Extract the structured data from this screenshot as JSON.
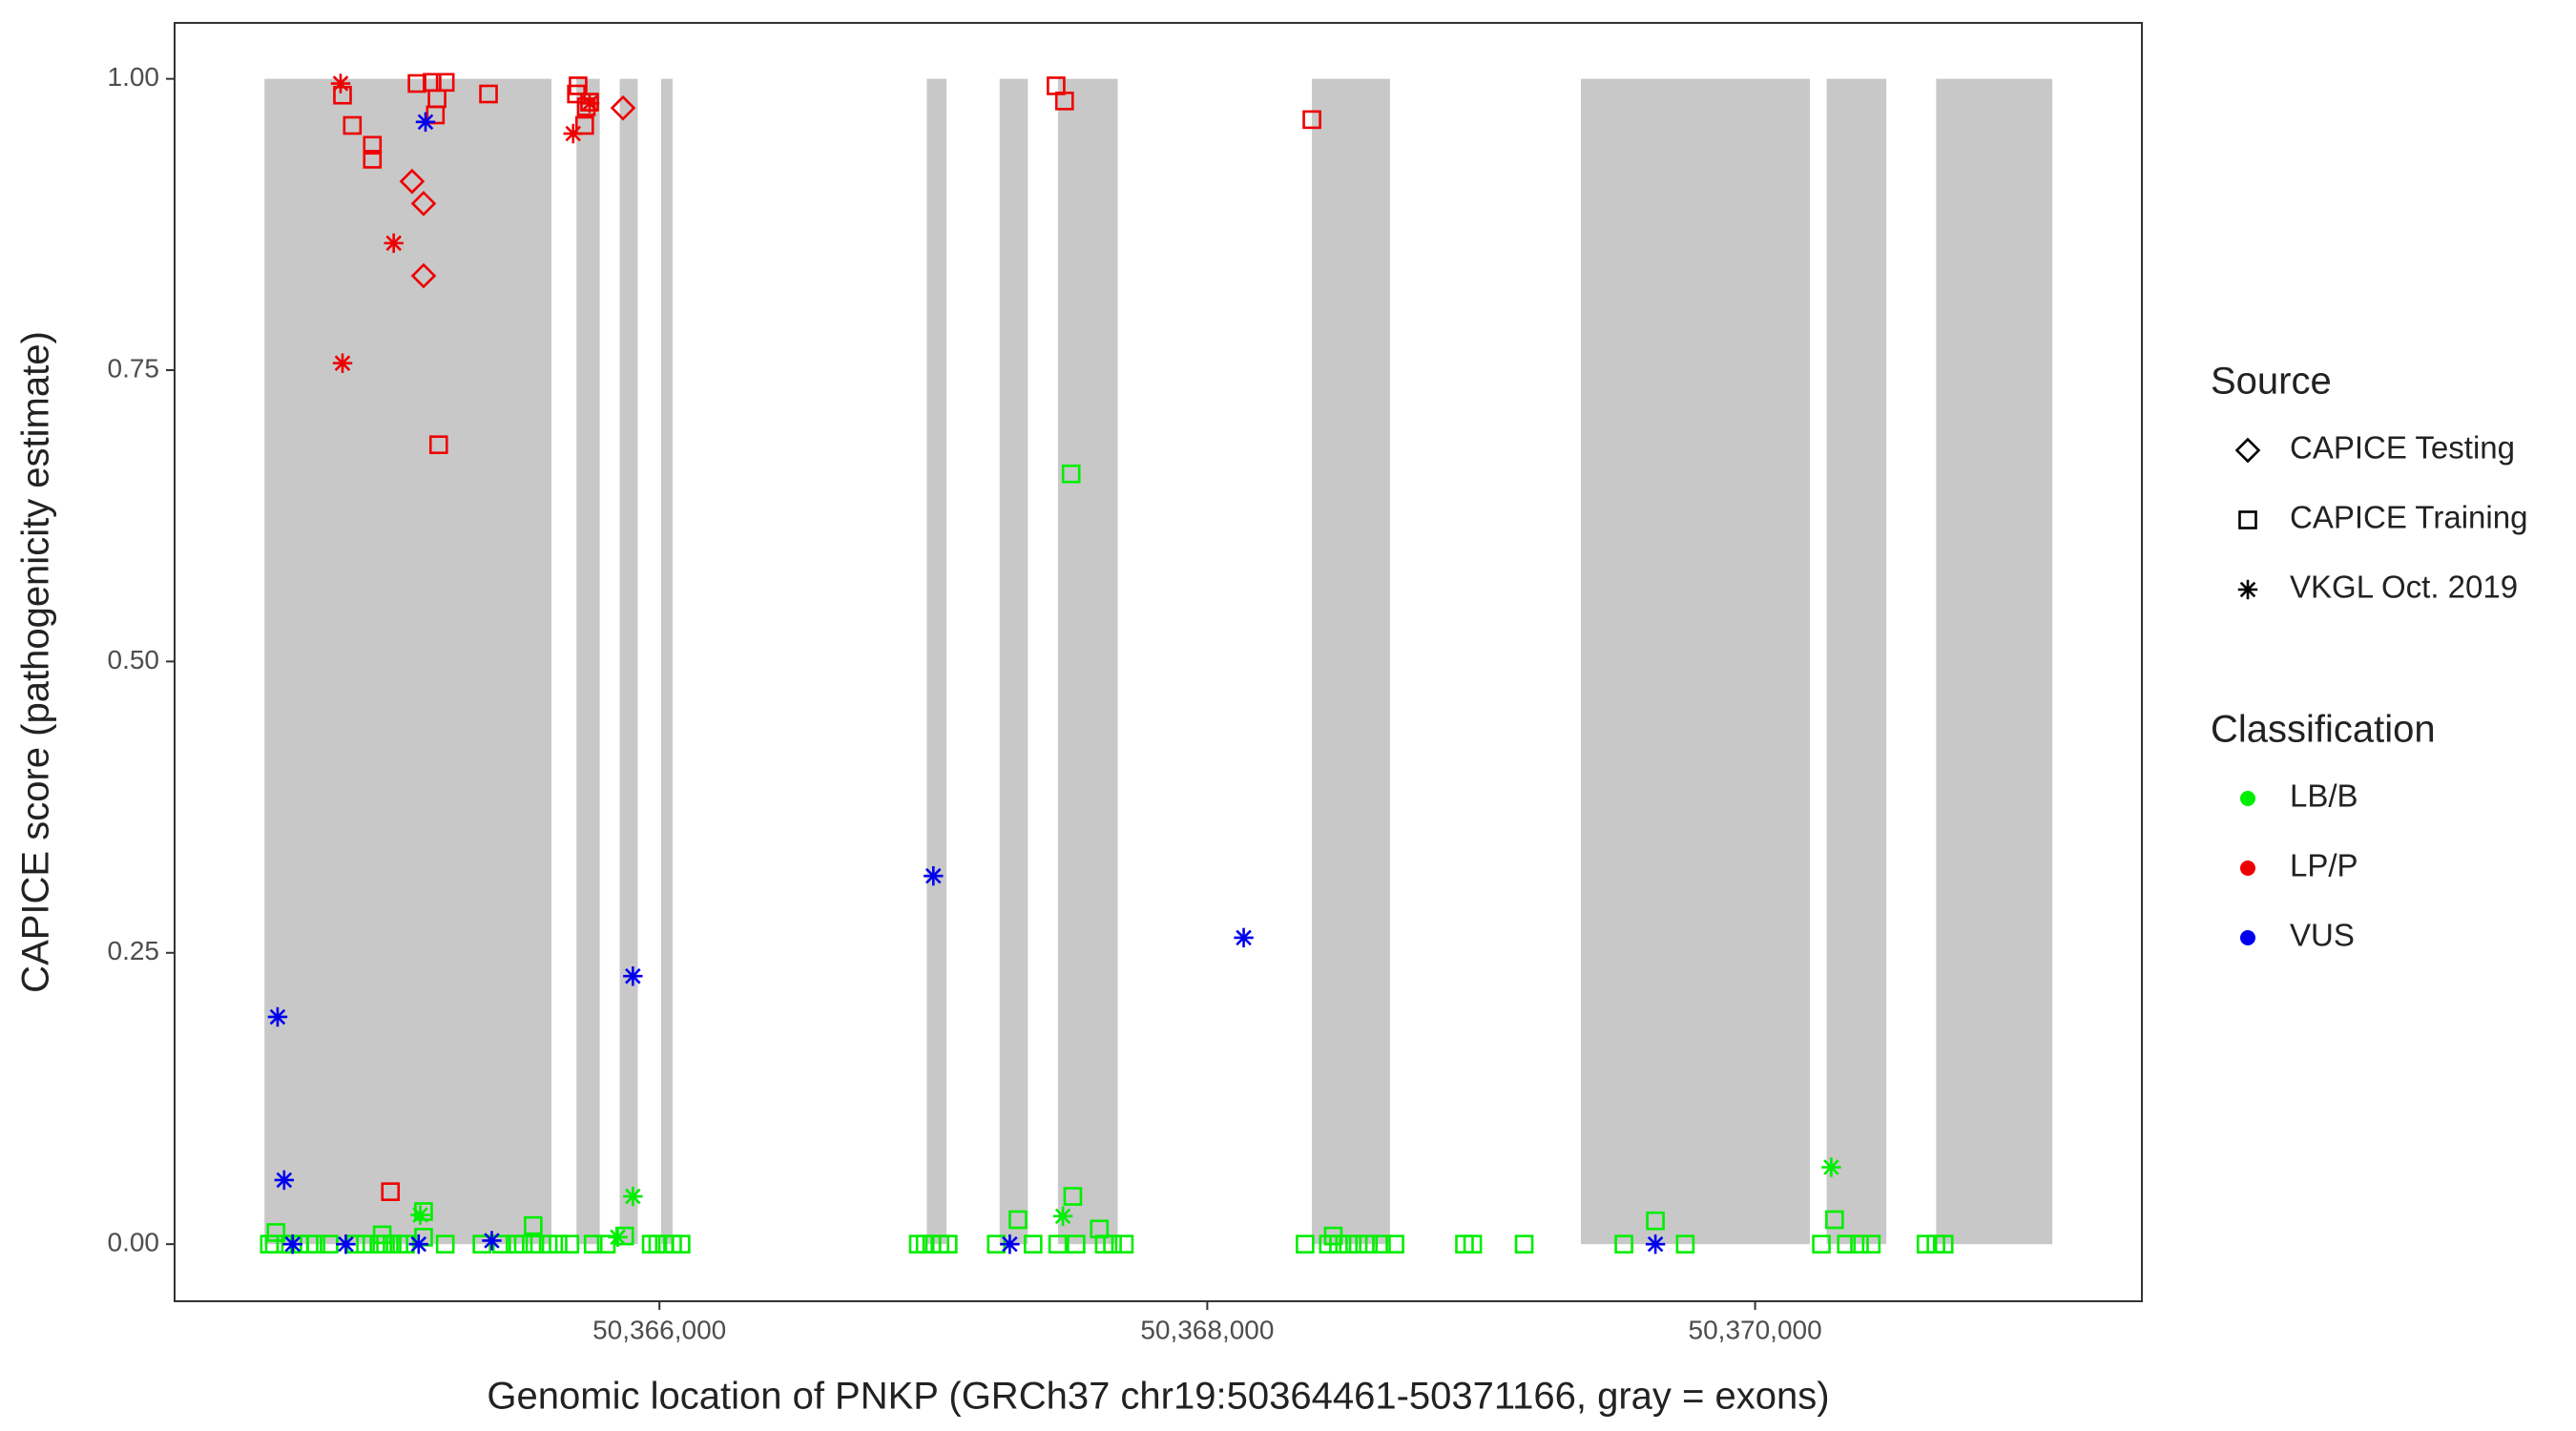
{
  "chart_data": {
    "type": "scatter",
    "x_label": "Genomic location of PNKP (GRCh37 chr19:50364461-50371166, gray = exons)",
    "y_label": "CAPICE score (pathogenicity estimate)",
    "xlim": [
      50364230,
      50371412
    ],
    "ylim": [
      -0.049,
      1.048
    ],
    "xticks": [
      {
        "value": 50366000,
        "label": "50,366,000"
      },
      {
        "value": 50368000,
        "label": "50,368,000"
      },
      {
        "value": 50370000,
        "label": "50,370,000"
      }
    ],
    "yticks": [
      {
        "value": 0,
        "label": "0.00"
      },
      {
        "value": 0.25,
        "label": "0.25"
      },
      {
        "value": 0.5,
        "label": "0.50"
      },
      {
        "value": 0.75,
        "label": "0.75"
      },
      {
        "value": 1,
        "label": "1.00"
      }
    ],
    "grid": false,
    "exon_color": "#c8c8c8",
    "exons": [
      [
        50364558,
        50365606
      ],
      [
        50365697,
        50365782
      ],
      [
        50365855,
        50365921
      ],
      [
        50366006,
        50366048
      ],
      [
        50366976,
        50367048
      ],
      [
        50367242,
        50367345
      ],
      [
        50367455,
        50367673
      ],
      [
        50368382,
        50368667
      ],
      [
        50369364,
        50370200
      ],
      [
        50370261,
        50370479
      ],
      [
        50370661,
        50371085
      ]
    ],
    "shape_legend": {
      "title": "Source",
      "entries": [
        {
          "name": "CAPICE Testing",
          "shape": "diamond"
        },
        {
          "name": "CAPICE Training",
          "shape": "square"
        },
        {
          "name": "VKGL Oct. 2019",
          "shape": "star"
        }
      ]
    },
    "color_legend": {
      "title": "Classification",
      "entries": [
        {
          "name": "LB/B",
          "color": "#00ee00"
        },
        {
          "name": "LP/P",
          "color": "#ee0000"
        },
        {
          "name": "VUS",
          "color": "#0000ee"
        }
      ]
    },
    "series": [
      {
        "source": "CAPICE Training",
        "classification": "LB/B",
        "x": [
          50364576,
          50364594,
          50364636,
          50364685,
          50364721,
          50364746,
          50364794,
          50364891,
          50364927,
          50364976,
          50365000,
          50365024,
          50365049,
          50365073,
          50365218,
          50365352,
          50365424,
          50365473,
          50365503,
          50365545,
          50365594,
          50365630,
          50365673,
          50365758,
          50365806,
          50365970,
          50365994,
          50366018,
          50366048,
          50366079,
          50366945,
          50366970,
          50366994,
          50367024,
          50367054,
          50367230,
          50367364,
          50367454,
          50367521,
          50367624,
          50367654,
          50367697,
          50368357,
          50368442,
          50368479,
          50368515,
          50368551,
          50368588,
          50368636,
          50368685,
          50368939,
          50368969,
          50369157,
          50369521,
          50369745,
          50370242,
          50370333,
          50370381,
          50370424,
          50370624,
          50370660,
          50370690,
          50364600,
          50364988,
          50365139,
          50365539,
          50365873,
          50367309,
          50367509,
          50367503,
          50367606,
          50369636,
          50370290,
          50368460,
          50365139
        ],
        "values": [
          0,
          0,
          0,
          0,
          0,
          0,
          0,
          0,
          0,
          0,
          0,
          0,
          0,
          0,
          0,
          0,
          0,
          0,
          0,
          0,
          0,
          0,
          0,
          0,
          0,
          0,
          0,
          0,
          0,
          0,
          0,
          0,
          0,
          0,
          0,
          0,
          0,
          0,
          0,
          0,
          0,
          0,
          0,
          0,
          0,
          0,
          0,
          0,
          0,
          0,
          0,
          0,
          0,
          0,
          0,
          0,
          0,
          0,
          0,
          0,
          0,
          0,
          0.01,
          0.008,
          0.028,
          0.016,
          0.007,
          0.021,
          0.041,
          0.661,
          0.013,
          0.02,
          0.021,
          0.007,
          0.006
        ]
      },
      {
        "source": "VKGL Oct. 2019",
        "classification": "LB/B",
        "x": [
          50365127,
          50365903,
          50367473,
          50370278,
          50365848
        ],
        "values": [
          0.025,
          0.041,
          0.024,
          0.066,
          0.006
        ]
      },
      {
        "source": "CAPICE Training",
        "classification": "LP/P",
        "x": [
          50364843,
          50364879,
          50364952,
          50364952,
          50365115,
          50365170,
          50365218,
          50365188,
          50365182,
          50365376,
          50365703,
          50365697,
          50365727,
          50365733,
          50365745,
          50367448,
          50367479,
          50368382,
          50365018,
          50365194
        ],
        "values": [
          0.986,
          0.96,
          0.943,
          0.931,
          0.996,
          0.997,
          0.997,
          0.983,
          0.969,
          0.987,
          0.994,
          0.987,
          0.96,
          0.976,
          0.98,
          0.994,
          0.981,
          0.965,
          0.045,
          0.686
        ]
      },
      {
        "source": "CAPICE Testing",
        "classification": "LP/P",
        "x": [
          50365097,
          50365139,
          50365139,
          50365867
        ],
        "values": [
          0.912,
          0.893,
          0.831,
          0.975
        ]
      },
      {
        "source": "VKGL Oct. 2019",
        "classification": "LP/P",
        "x": [
          50364836,
          50365030,
          50364843,
          50365685,
          50365745
        ],
        "values": [
          0.996,
          0.859,
          0.756,
          0.953,
          0.979
        ]
      },
      {
        "source": "VKGL Oct. 2019",
        "classification": "VUS",
        "x": [
          50365146,
          50364606,
          50364630,
          50364661,
          50364855,
          50365121,
          50365388,
          50365903,
          50367000,
          50367279,
          50368133,
          50369636
        ],
        "values": [
          0.963,
          0.195,
          0.055,
          0,
          0,
          0,
          0.003,
          0.23,
          0.316,
          0,
          0.263,
          0
        ]
      }
    ]
  }
}
